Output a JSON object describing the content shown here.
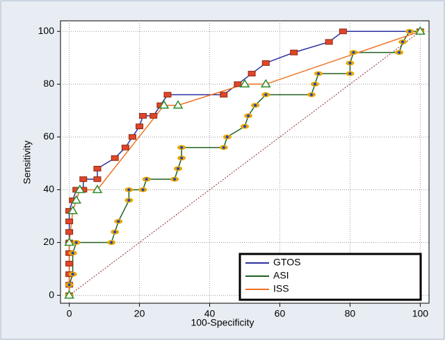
{
  "chart_data": {
    "type": "line",
    "x_label": "100-Specificity",
    "y_label": "Sensitivity",
    "xlim": [
      -2.5,
      102.5
    ],
    "ylim": [
      -3,
      104
    ],
    "xticks": [
      0,
      20,
      40,
      60,
      80,
      100
    ],
    "yticks": [
      0,
      20,
      40,
      60,
      80,
      100
    ],
    "grid": true,
    "legend": "lower right",
    "series": [
      {
        "name": "GTOS",
        "color": "#2b2f9e",
        "marker": "square",
        "marker_color": "#e0452a",
        "x": [
          0,
          0,
          0,
          0,
          0,
          0,
          0,
          0,
          0,
          1,
          2,
          4,
          4,
          8,
          8,
          13,
          16,
          18,
          20,
          21,
          24,
          26,
          28,
          44,
          48,
          52,
          56,
          64,
          74,
          78,
          100
        ],
        "values": [
          0,
          4,
          8,
          12,
          16,
          20,
          24,
          28,
          32,
          36,
          40,
          40,
          44,
          44,
          48,
          52,
          56,
          60,
          64,
          68,
          68,
          72,
          76,
          76,
          80,
          84,
          88,
          92,
          96,
          100,
          100
        ]
      },
      {
        "name": "ASI",
        "color": "#1f5f1f",
        "marker": "circle",
        "marker_color": "#e8a800",
        "x": [
          0,
          0,
          1,
          1,
          2,
          12,
          13,
          14,
          17,
          17,
          21,
          22,
          30,
          31,
          32,
          32,
          44,
          45,
          50,
          51,
          53,
          56,
          69,
          70,
          71,
          80,
          80,
          81,
          94,
          95,
          97,
          100
        ],
        "values": [
          0,
          4,
          8,
          16,
          20,
          20,
          24,
          28,
          36,
          40,
          40,
          44,
          44,
          48,
          52,
          56,
          56,
          60,
          64,
          68,
          72,
          76,
          76,
          80,
          84,
          84,
          88,
          92,
          92,
          96,
          100,
          100
        ]
      },
      {
        "name": "ISS",
        "color": "#f07020",
        "marker": "triangle",
        "marker_color": "#2a8a2a",
        "x": [
          0,
          0,
          1,
          2,
          3,
          8,
          27,
          31,
          50,
          56,
          100
        ],
        "values": [
          0,
          20,
          32,
          36,
          40,
          40,
          72,
          72,
          80,
          80,
          100
        ]
      }
    ]
  }
}
